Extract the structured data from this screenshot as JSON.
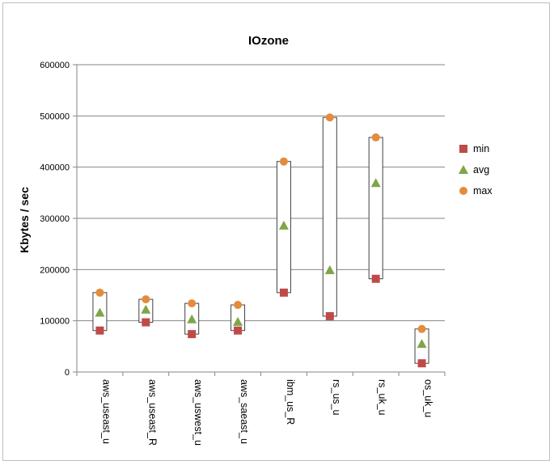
{
  "chart_data": {
    "type": "scatter",
    "title": "IOzone",
    "xlabel": "",
    "ylabel": "Kbytes / sec",
    "ylim": [
      0,
      600000
    ],
    "yticks": [
      "0",
      "100000",
      "200000",
      "300000",
      "400000",
      "500000",
      "600000"
    ],
    "categories": [
      "aws_useast_u",
      "aws_useast_R",
      "aws_uswest_u",
      "aws_saeast_u",
      "ibm_us_R",
      "rs_us_u",
      "rs_uk_u",
      "os_uk_u"
    ],
    "series": [
      {
        "name": "min",
        "marker": "square",
        "color": "#be4b48",
        "values": [
          81000,
          97000,
          74000,
          81000,
          155000,
          109000,
          182000,
          17000
        ]
      },
      {
        "name": "avg",
        "marker": "triangle",
        "color": "#7ea647",
        "values": [
          116000,
          122000,
          103000,
          98000,
          286000,
          199000,
          369000,
          55000
        ]
      },
      {
        "name": "max",
        "marker": "circle",
        "color": "#e48c3c",
        "values": [
          155000,
          142000,
          134000,
          131000,
          411000,
          497000,
          458000,
          84000
        ]
      }
    ],
    "range_boxes": "min-to-max",
    "grid": true,
    "legend_position": "right"
  }
}
